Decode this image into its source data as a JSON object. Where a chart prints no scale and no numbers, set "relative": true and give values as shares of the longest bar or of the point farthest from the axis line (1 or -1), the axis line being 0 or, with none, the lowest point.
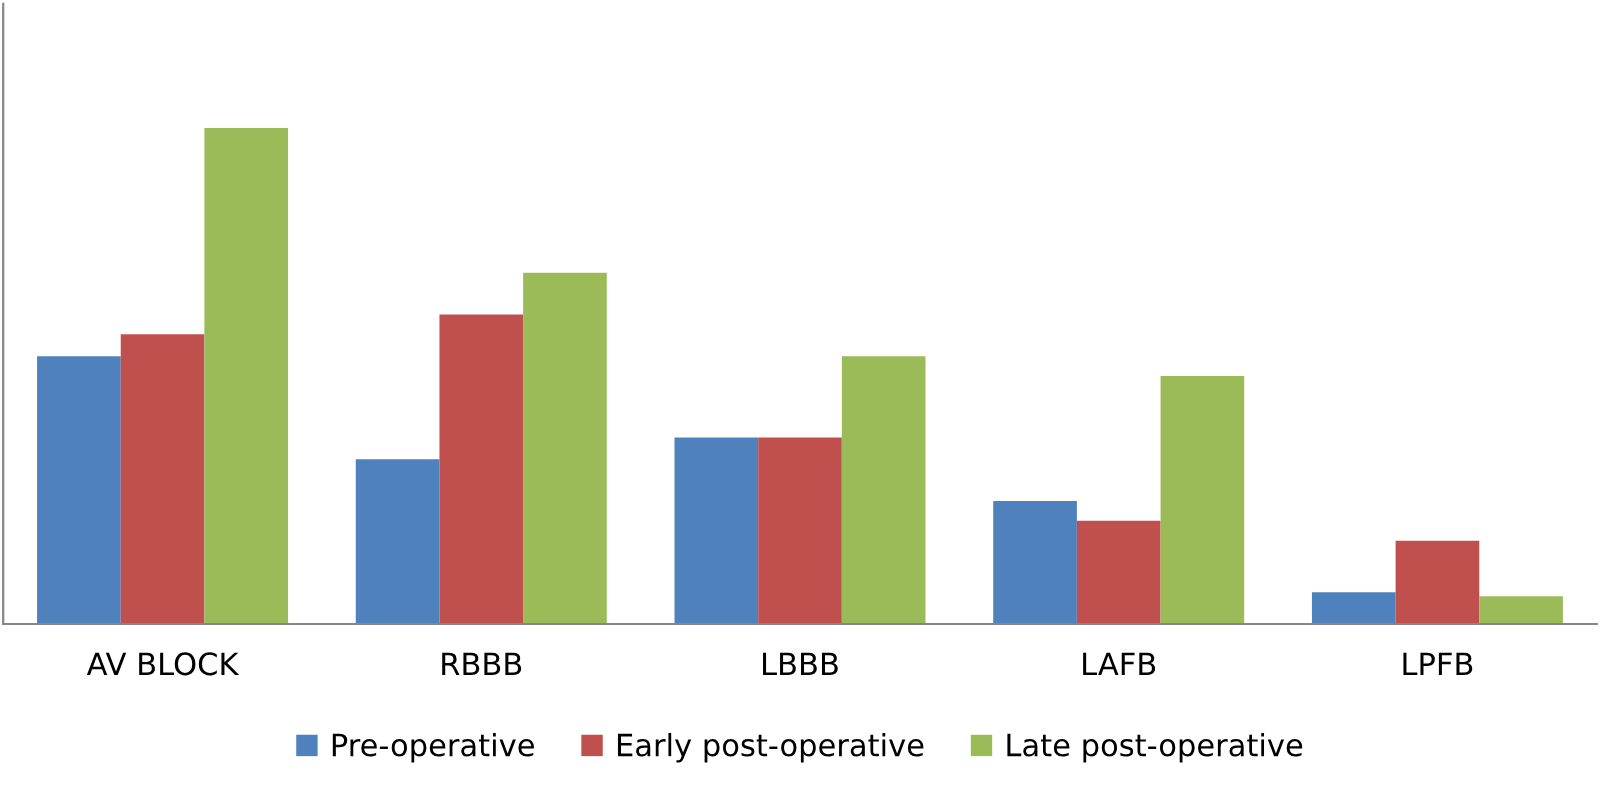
{
  "chart_data": {
    "type": "bar",
    "relative": true,
    "categories": [
      "AV BLOCK",
      "RBBB",
      "LBBB",
      "LAFB",
      "LPFB"
    ],
    "series": [
      {
        "name": "Pre-operative",
        "color": "#4f81bd",
        "values": [
          0.54,
          0.332,
          0.376,
          0.248,
          0.064
        ]
      },
      {
        "name": "Early post-operative",
        "color": "#c0504d",
        "values": [
          0.584,
          0.624,
          0.376,
          0.208,
          0.168
        ]
      },
      {
        "name": "Late post-operative",
        "color": "#9bbb59",
        "values": [
          1,
          0.708,
          0.54,
          0.5,
          0.056
        ]
      }
    ],
    "legend": "bottom",
    "grid": false
  }
}
